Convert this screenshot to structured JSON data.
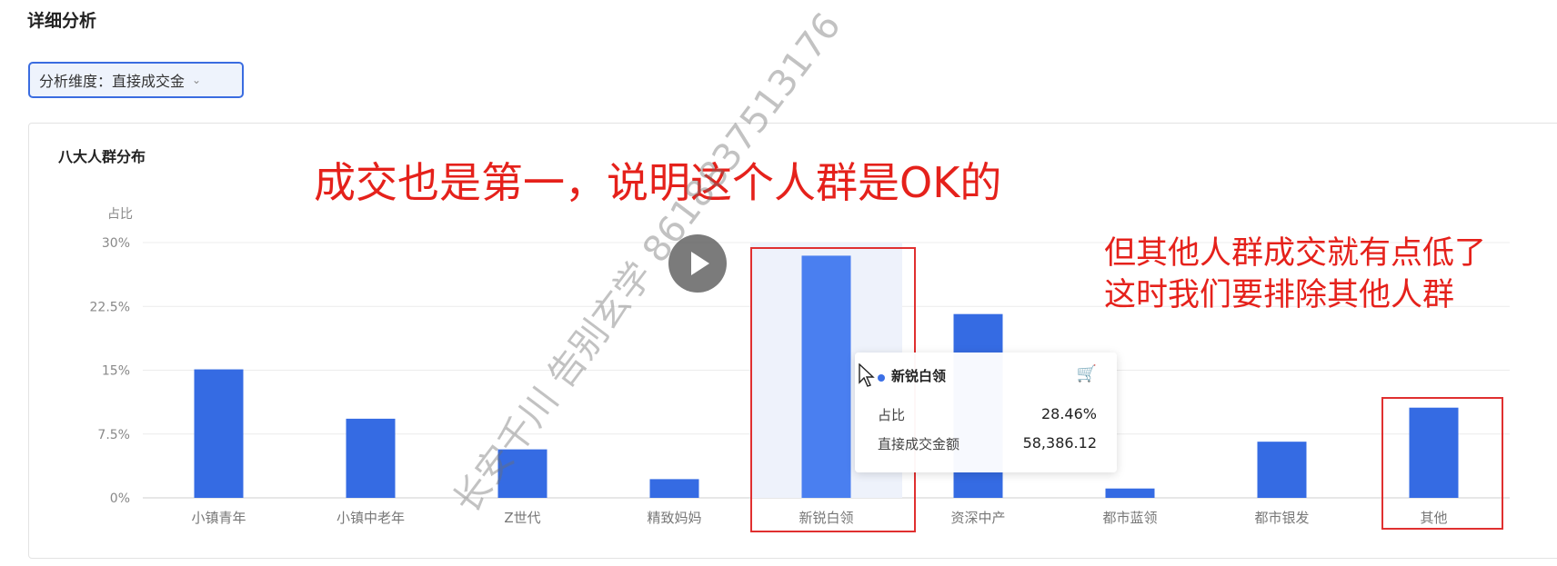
{
  "page": {
    "section_title": "详细分析",
    "dimension_select": {
      "label": "分析维度：",
      "value": "直接成交金"
    }
  },
  "chart_data": {
    "type": "bar",
    "title": "八大人群分布",
    "ylabel": "占比",
    "categories": [
      "小镇青年",
      "小镇中老年",
      "Z世代",
      "精致妈妈",
      "新锐白领",
      "资深中产",
      "都市蓝领",
      "都市银发",
      "其他"
    ],
    "values": [
      15.1,
      9.3,
      5.7,
      2.2,
      28.46,
      21.6,
      1.1,
      6.6,
      10.6
    ],
    "yticks": [
      "0%",
      "7.5%",
      "15%",
      "22.5%",
      "30%"
    ],
    "ylim": [
      0,
      30
    ],
    "grid": true,
    "bar_color": "#356be3",
    "highlight_color": "#4a7ff0"
  },
  "tooltip": {
    "name": "新锐白领",
    "k1": "占比",
    "v1": "28.46%",
    "k2": "直接成交金额",
    "v2": "58,386.12"
  },
  "annotations": {
    "main": "成交也是第一，说明这个人群是OK的",
    "side_line1": "但其他人群成交就有点低了",
    "side_line2": "这时我们要排除其他人群"
  },
  "watermark": "长安千川 告别玄学 8618837513176",
  "colors": {
    "annotation_red": "#e5211b",
    "accent": "#3a6ce0"
  }
}
